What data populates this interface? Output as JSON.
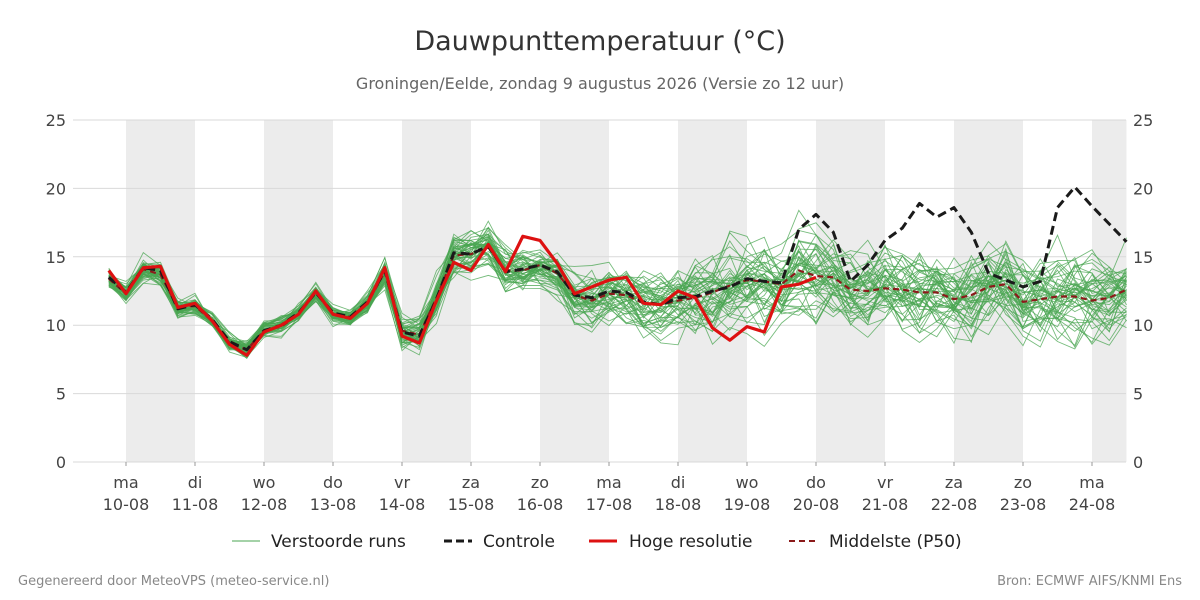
{
  "chart_data": {
    "type": "line",
    "title": "Dauwpunttemperatuur (°C)",
    "subtitle": "Groningen/Eelde, zondag  9 augustus 2026 (Versie zo 12 uur)",
    "ylim": [
      0,
      25
    ],
    "y_ticks": [
      "0",
      "5",
      "10",
      "15",
      "20",
      "25"
    ],
    "grid": true,
    "legend_position": "bottom",
    "x_unit": "day index (0 = ma 10-08 00 UTC)",
    "x_range": [
      -0.25,
      14.5
    ],
    "day_labels": [
      {
        "day": "ma",
        "date": "10-08"
      },
      {
        "day": "di",
        "date": "11-08"
      },
      {
        "day": "wo",
        "date": "12-08"
      },
      {
        "day": "do",
        "date": "13-08"
      },
      {
        "day": "vr",
        "date": "14-08"
      },
      {
        "day": "za",
        "date": "15-08"
      },
      {
        "day": "zo",
        "date": "16-08"
      },
      {
        "day": "ma",
        "date": "17-08"
      },
      {
        "day": "di",
        "date": "18-08"
      },
      {
        "day": "wo",
        "date": "19-08"
      },
      {
        "day": "do",
        "date": "20-08"
      },
      {
        "day": "vr",
        "date": "21-08"
      },
      {
        "day": "za",
        "date": "22-08"
      },
      {
        "day": "zo",
        "date": "23-08"
      },
      {
        "day": "ma",
        "date": "24-08"
      }
    ],
    "legend": [
      {
        "key": "ens",
        "label": "Verstoorde runs",
        "color": "#4aa552",
        "style": "thin"
      },
      {
        "key": "ctrl",
        "label": "Controle",
        "color": "#1a1a1a",
        "style": "dashed"
      },
      {
        "key": "hres",
        "label": "Hoge resolutie",
        "color": "#dd1111",
        "style": "solid"
      },
      {
        "key": "p50",
        "label": "Middelste (P50)",
        "color": "#8b1a1a",
        "style": "dashed"
      }
    ],
    "series": [
      {
        "name": "Hoge resolutie",
        "color": "#dd1111",
        "x": [
          -0.25,
          0,
          0.25,
          0.5,
          0.75,
          1,
          1.25,
          1.5,
          1.75,
          2,
          2.25,
          2.5,
          2.75,
          3,
          3.25,
          3.5,
          3.75,
          4,
          4.25,
          4.5,
          4.75,
          5,
          5.25,
          5.5,
          5.75,
          6,
          6.25,
          6.5,
          6.75,
          7,
          7.25,
          7.5,
          7.75,
          8,
          8.25,
          8.5,
          8.75,
          9,
          9.25,
          9.5,
          9.75,
          10
        ],
        "values": [
          14.0,
          12.3,
          14.2,
          14.3,
          11.3,
          11.6,
          10.3,
          8.6,
          7.8,
          9.5,
          10.0,
          10.8,
          12.5,
          10.8,
          10.5,
          11.6,
          14.2,
          9.2,
          8.7,
          11.8,
          14.6,
          14.0,
          15.9,
          13.9,
          16.5,
          16.2,
          14.5,
          12.3,
          12.8,
          13.3,
          13.5,
          11.6,
          11.5,
          12.5,
          12.0,
          9.8,
          8.9,
          9.9,
          9.5,
          12.8,
          13.0,
          13.5
        ]
      },
      {
        "name": "Controle",
        "color": "#1a1a1a",
        "x": [
          -0.25,
          0,
          0.25,
          0.5,
          0.75,
          1,
          1.25,
          1.5,
          1.75,
          2,
          2.25,
          2.5,
          2.75,
          3,
          3.25,
          3.5,
          3.75,
          4,
          4.25,
          4.5,
          4.75,
          5,
          5.25,
          5.5,
          5.75,
          6,
          6.25,
          6.5,
          6.75,
          7,
          7.25,
          7.5,
          7.75,
          8,
          8.25,
          8.5,
          8.75,
          9,
          9.25,
          9.5,
          9.75,
          10,
          10.25,
          10.5,
          10.75,
          11,
          11.25,
          11.5,
          11.75,
          12,
          12.25,
          12.5,
          12.75,
          13,
          13.25,
          13.5,
          13.75,
          14,
          14.25,
          14.5
        ],
        "values": [
          13.5,
          12.4,
          14.2,
          14.0,
          11.2,
          11.5,
          10.4,
          8.8,
          8.2,
          9.6,
          10.0,
          10.9,
          12.4,
          10.9,
          10.6,
          11.7,
          14.0,
          9.5,
          9.2,
          11.9,
          15.3,
          15.2,
          15.8,
          13.9,
          14.1,
          14.4,
          13.9,
          12.2,
          12.0,
          12.5,
          12.4,
          11.7,
          11.5,
          12.0,
          12.1,
          12.5,
          12.8,
          13.4,
          13.2,
          13.1,
          17.0,
          18.1,
          16.8,
          13.2,
          14.4,
          16.2,
          17.1,
          18.9,
          17.9,
          18.6,
          16.8,
          13.8,
          13.3,
          12.8,
          13.2,
          18.6,
          20.1,
          18.7,
          17.4,
          16.1
        ]
      },
      {
        "name": "Middelste (P50)",
        "color": "#8b1a1a",
        "x": [
          -0.25,
          0,
          0.25,
          0.5,
          0.75,
          1,
          1.25,
          1.5,
          1.75,
          2,
          2.25,
          2.5,
          2.75,
          3,
          3.25,
          3.5,
          3.75,
          4,
          4.25,
          4.5,
          4.75,
          5,
          5.25,
          5.5,
          5.75,
          6,
          6.25,
          6.5,
          6.75,
          7,
          7.25,
          7.5,
          7.75,
          8,
          8.25,
          8.5,
          8.75,
          9,
          9.25,
          9.5,
          9.75,
          10,
          10.25,
          10.5,
          10.75,
          11,
          11.25,
          11.5,
          11.75,
          12,
          12.25,
          12.5,
          12.75,
          13,
          13.25,
          13.5,
          13.75,
          14,
          14.25,
          14.5
        ],
        "values": [
          13.4,
          12.3,
          14.1,
          13.7,
          11.3,
          11.4,
          10.3,
          8.7,
          8.2,
          9.6,
          9.9,
          10.8,
          12.4,
          10.8,
          10.6,
          11.6,
          13.9,
          9.6,
          9.3,
          12.0,
          15.1,
          15.2,
          15.7,
          14.0,
          14.0,
          14.4,
          13.8,
          12.2,
          11.8,
          12.3,
          12.2,
          11.6,
          11.5,
          11.8,
          12.0,
          12.4,
          12.9,
          13.3,
          13.2,
          13.0,
          14.0,
          13.6,
          13.5,
          12.6,
          12.5,
          12.7,
          12.6,
          12.4,
          12.4,
          11.9,
          12.2,
          12.8,
          13.0,
          11.7,
          11.9,
          12.1,
          12.1,
          11.8,
          12.0,
          12.6
        ]
      }
    ],
    "ensemble": {
      "name": "Verstoorde runs",
      "color": "#4aa552",
      "x": [
        -0.25,
        0,
        0.25,
        0.5,
        0.75,
        1,
        1.25,
        1.5,
        1.75,
        2,
        2.25,
        2.5,
        2.75,
        3,
        3.25,
        3.5,
        3.75,
        4,
        4.25,
        4.5,
        4.75,
        5,
        5.25,
        5.5,
        5.75,
        6,
        6.25,
        6.5,
        6.75,
        7,
        7.25,
        7.5,
        7.75,
        8,
        8.25,
        8.5,
        8.75,
        9,
        9.25,
        9.5,
        9.75,
        10,
        10.25,
        10.5,
        10.75,
        11,
        11.25,
        11.5,
        11.75,
        12,
        12.25,
        12.5,
        12.75,
        13,
        13.25,
        13.5,
        13.75,
        14,
        14.25,
        14.5
      ],
      "members": 50,
      "spread": [
        0.8,
        0.7,
        0.9,
        0.8,
        0.7,
        0.7,
        0.6,
        0.7,
        0.7,
        0.6,
        0.6,
        0.6,
        0.7,
        0.6,
        0.6,
        0.7,
        1.0,
        1.2,
        1.3,
        1.5,
        1.6,
        1.6,
        1.5,
        1.5,
        1.6,
        1.5,
        1.6,
        1.7,
        1.8,
        1.9,
        2.0,
        2.1,
        2.2,
        2.4,
        2.5,
        2.6,
        2.7,
        2.7,
        2.8,
        2.8,
        2.8,
        2.8,
        2.8,
        2.8,
        2.8,
        2.8,
        2.8,
        2.8,
        2.8,
        2.8,
        2.8,
        2.8,
        2.8,
        2.8,
        2.8,
        2.8,
        2.8,
        2.8,
        2.8,
        2.8
      ],
      "seed": 20260809
    }
  },
  "footer": {
    "left": "Gegenereerd door MeteoVPS (meteo-service.nl)",
    "right": "Bron: ECMWF AIFS/KNMI Ens"
  }
}
